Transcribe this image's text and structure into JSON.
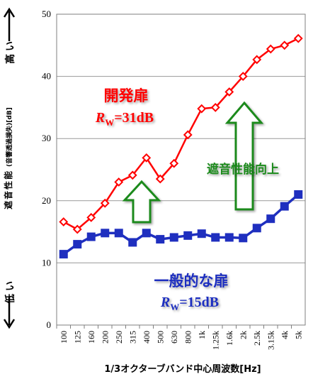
{
  "chart_data": {
    "type": "line",
    "categories": [
      "100",
      "125",
      "160",
      "200",
      "250",
      "315",
      "400",
      "500",
      "630",
      "800",
      "1k",
      "1.25k",
      "1.6k",
      "2k",
      "2.5k",
      "3.15k",
      "4k",
      "5k"
    ],
    "xlabel": "1/3オクターブバンド中心周波数[Hz]",
    "ylabel": "遮音性能",
    "ylabel_sub": "(音響透過損失)[dB]",
    "ylim": [
      0,
      50
    ],
    "yticks": [
      0,
      10,
      20,
      30,
      40,
      50
    ],
    "grid": true,
    "high_label": "高い",
    "low_label": "低い",
    "series": [
      {
        "name": "開発扉",
        "rating_value": "=31dB",
        "color": "#ff0000",
        "values": [
          16.6,
          15.4,
          17.3,
          19.6,
          23.0,
          24.1,
          26.9,
          23.5,
          26.0,
          30.6,
          34.8,
          35.0,
          37.5,
          40.0,
          42.7,
          44.4,
          45.0,
          46.1
        ]
      },
      {
        "name": "一般的な扉",
        "rating_value": "=15dB",
        "color": "#1f2fbf",
        "values": [
          11.4,
          13.0,
          14.2,
          14.8,
          14.8,
          13.3,
          14.8,
          13.8,
          14.1,
          14.4,
          14.7,
          14.1,
          14.1,
          14.0,
          15.6,
          17.1,
          19.1,
          21.0
        ]
      }
    ],
    "annotation": "遮音性能向上",
    "rating_symbol": "R",
    "rating_subscript": "W",
    "colors": {
      "improvement_arrow": "#1a8a1a",
      "grid": "#999999"
    }
  }
}
